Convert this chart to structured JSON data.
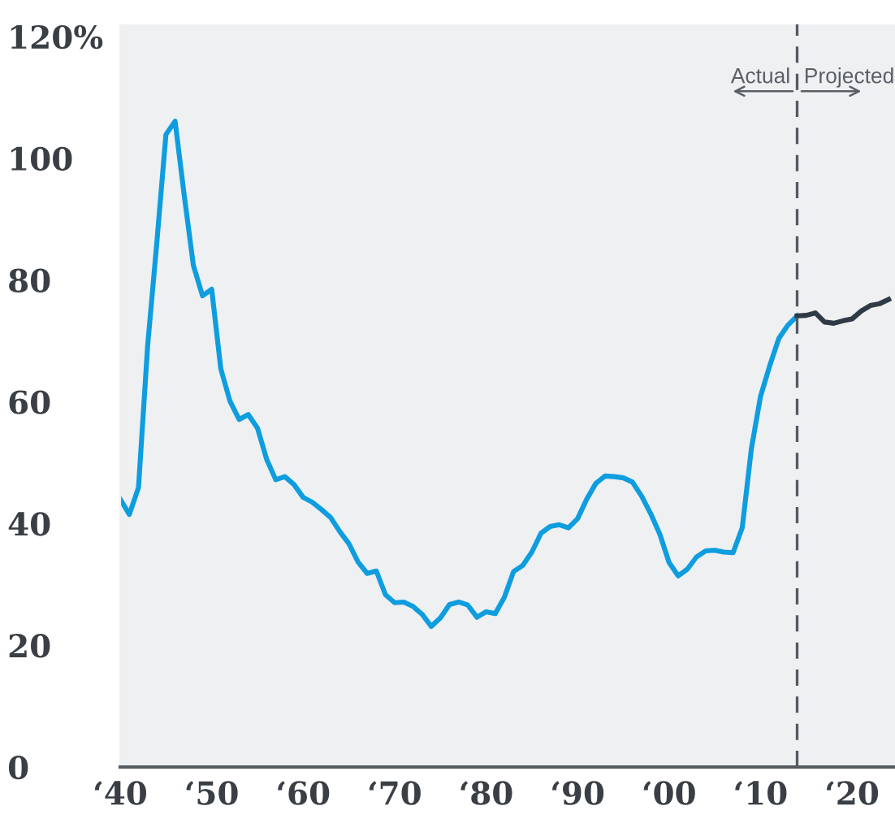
{
  "chart_data": {
    "type": "line",
    "series": [
      {
        "color": "#0e9ddf",
        "values": [
          44,
          41.5,
          45.9,
          69.2,
          86.1,
          103.9,
          106.1,
          93.9,
          82.4,
          77.4,
          78.5,
          65.4,
          60.1,
          57.1,
          57.9,
          55.7,
          50.6,
          47.2,
          47.7,
          46.4,
          44.3,
          43.5,
          42.3,
          41.0,
          38.7,
          36.7,
          33.7,
          31.8,
          32.2,
          28.3,
          27.0,
          27.1,
          26.4,
          25.1,
          23.1,
          24.5,
          26.7,
          27.1,
          26.6,
          24.6,
          25.5,
          25.2,
          27.9,
          32.1,
          33.1,
          35.3,
          38.4,
          39.5,
          39.8,
          39.3,
          40.8,
          44.0,
          46.6,
          47.8,
          47.7,
          47.5,
          46.8,
          44.5,
          41.6,
          38.2,
          33.6,
          31.4,
          32.5,
          34.5,
          35.5,
          35.6,
          35.3,
          35.2,
          39.3,
          52.3,
          60.9,
          65.9,
          70.4,
          72.6,
          74.1,
          null,
          null,
          null,
          null,
          null,
          null,
          null,
          null,
          null,
          null
        ]
      },
      {
        "color": "#2f3a45",
        "values": [
          null,
          null,
          null,
          null,
          null,
          null,
          null,
          null,
          null,
          null,
          null,
          null,
          null,
          null,
          null,
          null,
          null,
          null,
          null,
          null,
          null,
          null,
          null,
          null,
          null,
          null,
          null,
          null,
          null,
          null,
          null,
          null,
          null,
          null,
          null,
          null,
          null,
          null,
          null,
          null,
          null,
          null,
          null,
          null,
          null,
          null,
          null,
          null,
          null,
          null,
          null,
          null,
          null,
          null,
          null,
          null,
          null,
          null,
          null,
          null,
          null,
          null,
          null,
          null,
          null,
          null,
          null,
          null,
          null,
          null,
          null,
          null,
          null,
          null,
          74.1,
          74.2,
          74.6,
          73.1,
          72.9,
          73.3,
          73.6,
          74.9,
          75.8,
          76.1,
          76.8
        ]
      }
    ],
    "categories": [
      "‘40",
      null,
      null,
      null,
      null,
      null,
      null,
      null,
      null,
      null,
      "‘50",
      null,
      null,
      null,
      null,
      null,
      null,
      null,
      null,
      null,
      "‘60",
      null,
      null,
      null,
      null,
      null,
      null,
      null,
      null,
      null,
      "‘70",
      null,
      null,
      null,
      null,
      null,
      null,
      null,
      null,
      null,
      "‘80",
      null,
      null,
      null,
      null,
      null,
      null,
      null,
      null,
      null,
      "‘90",
      null,
      null,
      null,
      null,
      null,
      null,
      null,
      null,
      null,
      "‘00",
      null,
      null,
      null,
      null,
      null,
      null,
      null,
      null,
      null,
      "‘10",
      null,
      null,
      null,
      null,
      null,
      null,
      null,
      null,
      null,
      "‘20",
      null,
      null,
      null,
      null
    ],
    "ylim": [
      0,
      122
    ],
    "yticks": [
      0,
      20,
      40,
      60,
      80,
      100,
      {
        "value": 120,
        "label": "120%"
      }
    ],
    "grid": false,
    "marker": "none",
    "line_style": "solid",
    "annotations": [
      "Actual",
      "Projected"
    ]
  }
}
